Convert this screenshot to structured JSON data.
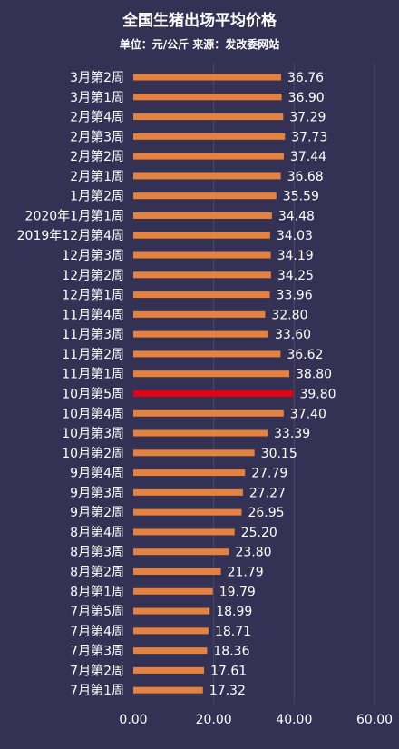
{
  "chart_data": {
    "type": "bar",
    "orientation": "horizontal",
    "title": "全国生猪出场平均价格",
    "subtitle": "单位：元/公斤 来源：发改委网站",
    "categories": [
      "3月第2周",
      "3月第1周",
      "2月第4周",
      "2月第3周",
      "2月第2周",
      "2月第1周",
      "1月第2周",
      "2020年1月第1周",
      "2019年12月第4周",
      "12月第3周",
      "12月第2周",
      "12月第1周",
      "11月第4周",
      "11月第3周",
      "11月第2周",
      "11月第1周",
      "10月第5周",
      "10月第4周",
      "10月第3周",
      "10月第2周",
      "9月第4周",
      "9月第3周",
      "9月第2周",
      "8月第4周",
      "8月第3周",
      "8月第2周",
      "8月第1周",
      "7月第5周",
      "7月第4周",
      "7月第3周",
      "7月第2周",
      "7月第1周"
    ],
    "values": [
      36.76,
      36.9,
      37.29,
      37.73,
      37.44,
      36.68,
      35.59,
      34.48,
      34.03,
      34.19,
      34.25,
      33.96,
      32.8,
      33.6,
      36.62,
      38.8,
      39.8,
      37.4,
      33.39,
      30.15,
      27.79,
      27.27,
      26.95,
      25.2,
      23.8,
      21.79,
      19.79,
      18.99,
      18.71,
      18.36,
      17.61,
      17.32
    ],
    "value_labels": [
      "36.76",
      "36.90",
      "37.29",
      "37.73",
      "37.44",
      "36.68",
      "35.59",
      "34.48",
      "34.03",
      "34.19",
      "34.25",
      "33.96",
      "32.80",
      "33.60",
      "36.62",
      "38.80",
      "39.80",
      "37.40",
      "33.39",
      "30.15",
      "27.79",
      "27.27",
      "26.95",
      "25.20",
      "23.80",
      "21.79",
      "19.79",
      "18.99",
      "18.71",
      "18.36",
      "17.61",
      "17.32"
    ],
    "highlight_category": "10月第5周",
    "xlim": [
      0,
      60
    ],
    "x_ticks": [
      "0.00",
      "20.00",
      "40.00",
      "60.00"
    ],
    "grid": "vertical",
    "colors": {
      "background": "#333254",
      "bar": "#E8823A",
      "highlight": "#E60012",
      "grid": "#4a4968",
      "text": "#ffffff"
    }
  }
}
